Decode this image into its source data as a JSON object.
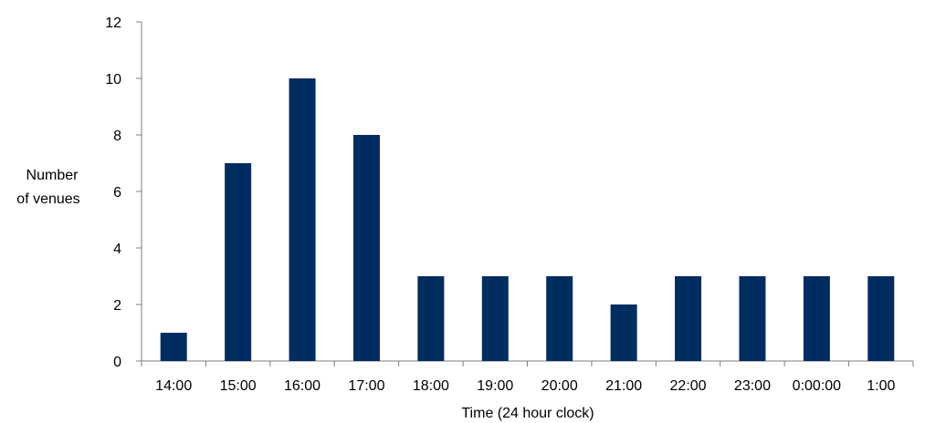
{
  "chart_data": {
    "type": "bar",
    "categories": [
      "14:00",
      "15:00",
      "16:00",
      "17:00",
      "18:00",
      "19:00",
      "20:00",
      "21:00",
      "22:00",
      "23:00",
      "0:00:00",
      "1:00"
    ],
    "values": [
      1,
      7,
      10,
      8,
      3,
      3,
      3,
      2,
      3,
      3,
      3,
      3
    ],
    "title": "",
    "xlabel": "Time (24 hour clock)",
    "ylabel_lines": [
      "Number",
      "of venues"
    ],
    "ylim": [
      0,
      12
    ],
    "yticks": [
      0,
      2,
      4,
      6,
      8,
      10,
      12
    ],
    "grid": false,
    "legend": "none",
    "bar_color": "#002d5f",
    "axis_color": "#7f7f7f"
  }
}
